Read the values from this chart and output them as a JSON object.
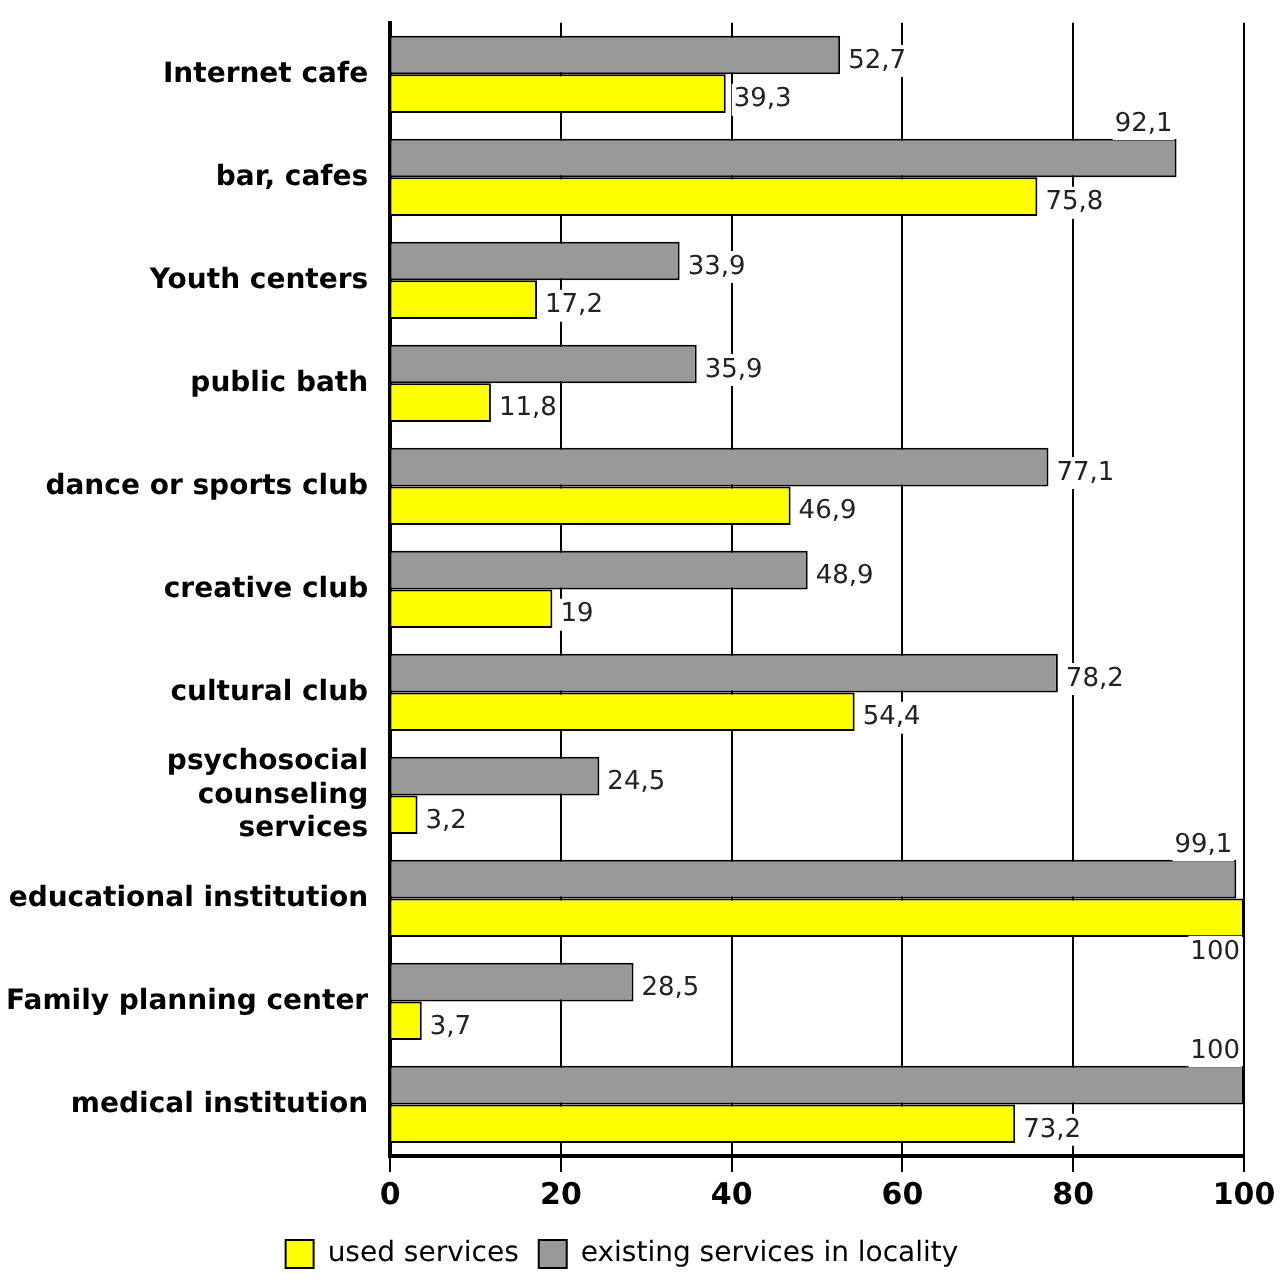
{
  "chart_data": {
    "type": "bar",
    "orientation": "horizontal",
    "categories": [
      "Internet cafe",
      "bar, cafes",
      "Youth centers",
      "public bath",
      "dance or sports club",
      "creative club",
      "cultural club",
      "psychosocial counseling services",
      "educational institution",
      "Family planning center",
      "medical institution"
    ],
    "series": [
      {
        "name": "used services",
        "color": "#ffff00",
        "values": [
          39.3,
          75.8,
          17.2,
          11.8,
          46.9,
          19,
          54.4,
          3.2,
          100,
          3.7,
          73.2
        ],
        "value_labels": [
          "39,3",
          "75,8",
          "17,2",
          "11,8",
          "46,9",
          "19",
          "54,4",
          "3,2",
          "100",
          "3,7",
          "73,2"
        ]
      },
      {
        "name": "existing services in locality",
        "color": "#999999",
        "values": [
          52.7,
          92.1,
          33.9,
          35.9,
          77.1,
          48.9,
          78.2,
          24.5,
          99.1,
          28.5,
          100
        ],
        "value_labels": [
          "52,7",
          "92,1",
          "33,9",
          "35,9",
          "77,1",
          "48,9",
          "78,2",
          "24,5",
          "99,1",
          "28,5",
          "100"
        ]
      }
    ],
    "xlim": [
      0,
      100
    ],
    "xticks": [
      0,
      20,
      40,
      60,
      80,
      100
    ],
    "grid": "x",
    "legend": "bottom"
  }
}
